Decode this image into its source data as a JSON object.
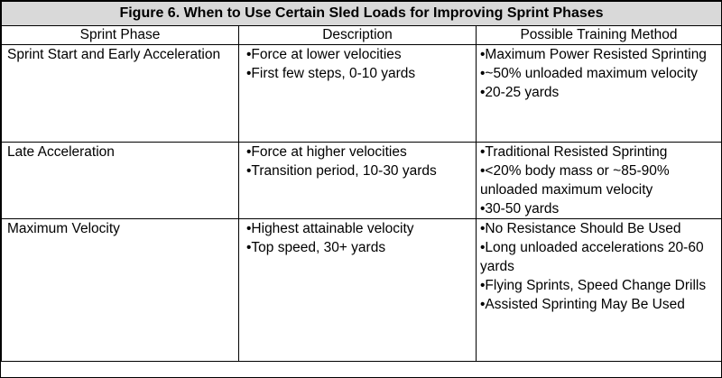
{
  "table": {
    "title": "Figure 6. When to Use Certain Sled Loads for Improving Sprint Phases",
    "headers": [
      "Sprint Phase",
      "Description",
      "Possible Training Method"
    ],
    "rows": [
      {
        "phase": "Sprint Start and Early Acceleration",
        "description": [
          "•Force at lower velocities",
          "•First few steps, 0-10 yards"
        ],
        "methods": [
          "•Maximum Power Resisted Sprinting",
          "•~50% unloaded maximum velocity",
          "•20-25 yards"
        ]
      },
      {
        "phase": "Late Acceleration",
        "description": [
          "•Force at higher velocities",
          "•Transition period, 10-30 yards"
        ],
        "methods": [
          "•Traditional Resisted Sprinting",
          "•<20% body mass or ~85-90% unloaded maximum velocity",
          "•30-50 yards"
        ]
      },
      {
        "phase": "Maximum Velocity",
        "description": [
          "•Highest attainable velocity",
          "•Top speed, 30+ yards"
        ],
        "methods": [
          "•No Resistance Should Be Used",
          "•Long unloaded accelerations 20-60 yards",
          "•Flying Sprints, Speed Change Drills",
          "•Assisted Sprinting May Be Used"
        ]
      }
    ]
  }
}
